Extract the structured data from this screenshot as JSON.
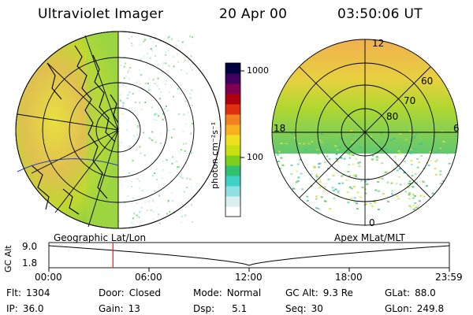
{
  "header": {
    "instrument": "Ultraviolet Imager",
    "date": "20 Apr 00",
    "time": "03:50:06 UT"
  },
  "colorbar": {
    "unit_label": "photon cm⁻²s⁻¹",
    "ticks": [
      "1000",
      "100"
    ]
  },
  "polar_plot": {
    "lat_labels": [
      "60",
      "70",
      "80"
    ],
    "mlt_labels": [
      "12",
      "18",
      "6",
      "0"
    ]
  },
  "panels": {
    "left_caption": "Geographic Lat/Lon",
    "right_caption": "Apex MLat/MLT"
  },
  "timeline": {
    "y_axis_label": "GC Alt",
    "y_ticks": [
      "9.0",
      "1.8"
    ],
    "x_ticks": [
      "00:00",
      "06:00",
      "12:00",
      "18:00",
      "23:59"
    ],
    "current_time_fraction": 0.16
  },
  "status": {
    "flt_label": "Flt:",
    "flt": "1304",
    "ip_label": "IP:",
    "ip": "36.0",
    "door_label": "Door:",
    "door": "Closed",
    "gain_label": "Gain:",
    "gain": "13",
    "mode_label": "Mode:",
    "mode": "Normal",
    "dsp_label": "Dsp:",
    "dsp": "5.1",
    "gcalt_label": "GC Alt:",
    "gcalt": "9.3 Re",
    "seq_label": "Seq:",
    "seq": "30",
    "glat_label": "GLat:",
    "glat": "88.0",
    "glon_label": "GLon:",
    "glon": "249.8"
  },
  "colors": {
    "colorbar": [
      "#ffffff",
      "#d9f0ef",
      "#8fe0e0",
      "#3fd0c8",
      "#2fc070",
      "#7ccf20",
      "#c8e010",
      "#f0e020",
      "#f8b020",
      "#f08020",
      "#e03010",
      "#b00010",
      "#800050",
      "#400060",
      "#000040"
    ],
    "aurora_low": "#6cd06a",
    "aurora_mid": "#d8e040",
    "aurora_high": "#f0b050",
    "cursor": "#e02020"
  }
}
